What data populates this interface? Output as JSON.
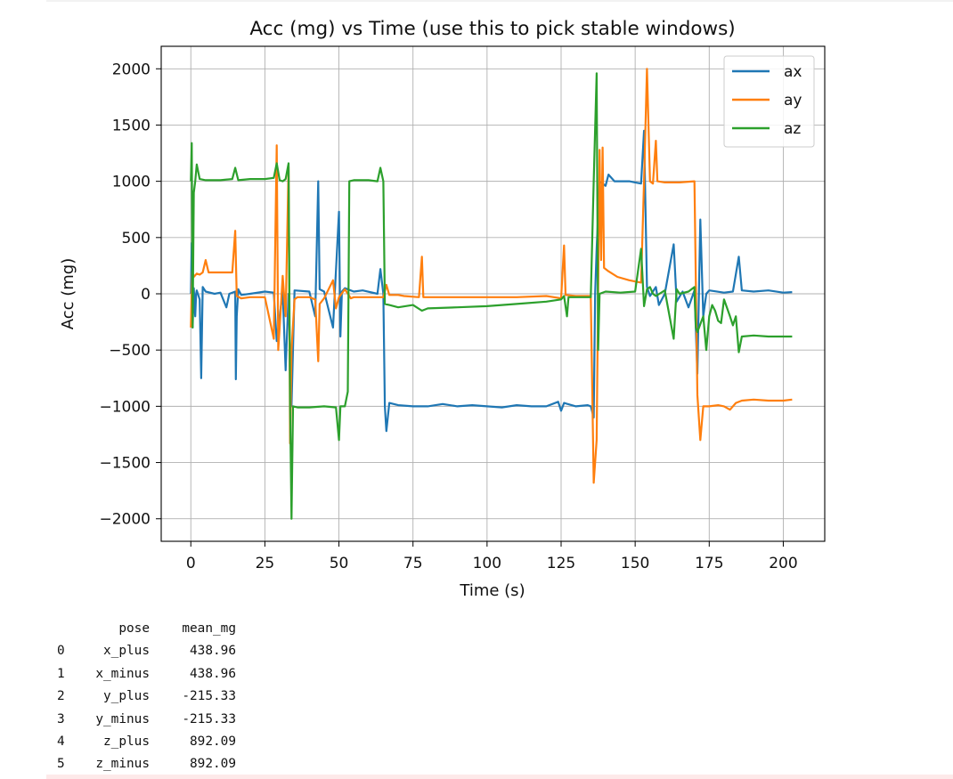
{
  "chart_data": {
    "type": "line",
    "title": "Acc (mg) vs Time (use this to pick stable windows)",
    "xlabel": "Time (s)",
    "ylabel": "Acc (mg)",
    "xlim": [
      -10,
      214
    ],
    "ylim": [
      -2200,
      2200
    ],
    "xticks": [
      0,
      25,
      50,
      75,
      100,
      125,
      150,
      175,
      200
    ],
    "yticks": [
      2000,
      1500,
      1000,
      500,
      0,
      -500,
      -1000,
      -1500,
      -2000
    ],
    "xtick_labels": [
      "0",
      "25",
      "50",
      "75",
      "100",
      "125",
      "150",
      "175",
      "200"
    ],
    "ytick_labels": [
      "2000",
      "1500",
      "1000",
      "500",
      "0",
      "−500",
      "−1000",
      "−1500",
      "−2000"
    ],
    "grid": true,
    "legend_position": "upper right",
    "series": [
      {
        "name": "ax",
        "color": "#1f77b4",
        "points": [
          [
            0,
            0
          ],
          [
            0.3,
            450
          ],
          [
            0.6,
            -300
          ],
          [
            1,
            50
          ],
          [
            1.5,
            -200
          ],
          [
            1.8,
            0
          ],
          [
            2,
            30
          ],
          [
            3,
            -50
          ],
          [
            3.5,
            -750
          ],
          [
            4,
            60
          ],
          [
            5,
            20
          ],
          [
            8,
            0
          ],
          [
            10,
            10
          ],
          [
            12,
            -120
          ],
          [
            13,
            0
          ],
          [
            15,
            20
          ],
          [
            15.2,
            -760
          ],
          [
            15.5,
            -200
          ],
          [
            16,
            40
          ],
          [
            17,
            -10
          ],
          [
            20,
            0
          ],
          [
            25,
            20
          ],
          [
            28,
            10
          ],
          [
            29,
            -420
          ],
          [
            30,
            -200
          ],
          [
            31,
            20
          ],
          [
            32,
            -680
          ],
          [
            33,
            0
          ],
          [
            34,
            -1000
          ],
          [
            35,
            30
          ],
          [
            40,
            20
          ],
          [
            42,
            -200
          ],
          [
            43,
            1000
          ],
          [
            43.5,
            40
          ],
          [
            45,
            20
          ],
          [
            48,
            -300
          ],
          [
            50,
            730
          ],
          [
            50.5,
            -380
          ],
          [
            51,
            20
          ],
          [
            52,
            50
          ],
          [
            55,
            20
          ],
          [
            58,
            30
          ],
          [
            63,
            0
          ],
          [
            64,
            220
          ],
          [
            65,
            0
          ],
          [
            65.5,
            -1000
          ],
          [
            66,
            -1220
          ],
          [
            67,
            -970
          ],
          [
            70,
            -990
          ],
          [
            75,
            -1000
          ],
          [
            80,
            -1000
          ],
          [
            85,
            -980
          ],
          [
            90,
            -1000
          ],
          [
            95,
            -990
          ],
          [
            100,
            -1000
          ],
          [
            105,
            -1010
          ],
          [
            110,
            -990
          ],
          [
            115,
            -1000
          ],
          [
            120,
            -1000
          ],
          [
            124,
            -960
          ],
          [
            125,
            -1040
          ],
          [
            126,
            -970
          ],
          [
            130,
            -1000
          ],
          [
            134,
            -990
          ],
          [
            135,
            -1000
          ],
          [
            136,
            -1100
          ],
          [
            136.5,
            0
          ],
          [
            137,
            400
          ],
          [
            138,
            1000
          ],
          [
            140,
            960
          ],
          [
            141,
            1060
          ],
          [
            143,
            1000
          ],
          [
            148,
            1000
          ],
          [
            150,
            990
          ],
          [
            152,
            980
          ],
          [
            153,
            1450
          ],
          [
            154,
            60
          ],
          [
            155,
            -20
          ],
          [
            157,
            60
          ],
          [
            158,
            -100
          ],
          [
            160,
            0
          ],
          [
            163,
            440
          ],
          [
            164,
            -70
          ],
          [
            166,
            20
          ],
          [
            168,
            -120
          ],
          [
            170,
            30
          ],
          [
            171,
            -710
          ],
          [
            172,
            660
          ],
          [
            173,
            -200
          ],
          [
            174,
            0
          ],
          [
            175,
            30
          ],
          [
            180,
            10
          ],
          [
            183,
            20
          ],
          [
            185,
            330
          ],
          [
            186,
            30
          ],
          [
            190,
            20
          ],
          [
            195,
            30
          ],
          [
            200,
            10
          ],
          [
            203,
            15
          ]
        ]
      },
      {
        "name": "ay",
        "color": "#ff7f0e",
        "points": [
          [
            0,
            -300
          ],
          [
            0.5,
            200
          ],
          [
            1,
            150
          ],
          [
            2,
            180
          ],
          [
            3,
            170
          ],
          [
            4,
            190
          ],
          [
            5,
            300
          ],
          [
            6,
            190
          ],
          [
            10,
            190
          ],
          [
            14,
            190
          ],
          [
            15,
            560
          ],
          [
            15.5,
            -20
          ],
          [
            17,
            -40
          ],
          [
            20,
            -30
          ],
          [
            25,
            -30
          ],
          [
            28,
            -400
          ],
          [
            29,
            1320
          ],
          [
            29.5,
            -500
          ],
          [
            30,
            -300
          ],
          [
            31,
            160
          ],
          [
            32,
            -200
          ],
          [
            33,
            1130
          ],
          [
            33.5,
            -1330
          ],
          [
            34,
            -500
          ],
          [
            35,
            -50
          ],
          [
            36,
            -30
          ],
          [
            40,
            -30
          ],
          [
            42,
            -50
          ],
          [
            43,
            -600
          ],
          [
            43.5,
            -90
          ],
          [
            45,
            -40
          ],
          [
            48,
            120
          ],
          [
            49,
            -130
          ],
          [
            50,
            -30
          ],
          [
            52,
            40
          ],
          [
            54,
            -40
          ],
          [
            55,
            -30
          ],
          [
            58,
            -30
          ],
          [
            62,
            -30
          ],
          [
            65,
            -30
          ],
          [
            66,
            80
          ],
          [
            67,
            -10
          ],
          [
            70,
            -10
          ],
          [
            72,
            -20
          ],
          [
            77,
            -30
          ],
          [
            78,
            330
          ],
          [
            78.5,
            -30
          ],
          [
            85,
            -30
          ],
          [
            90,
            -30
          ],
          [
            100,
            -30
          ],
          [
            110,
            -30
          ],
          [
            120,
            -20
          ],
          [
            125,
            -40
          ],
          [
            126,
            430
          ],
          [
            126.5,
            -10
          ],
          [
            130,
            -20
          ],
          [
            135,
            -20
          ],
          [
            136,
            -1680
          ],
          [
            137,
            -1300
          ],
          [
            138,
            1280
          ],
          [
            138.5,
            300
          ],
          [
            139,
            1300
          ],
          [
            139.5,
            230
          ],
          [
            141,
            200
          ],
          [
            144,
            150
          ],
          [
            148,
            120
          ],
          [
            152,
            100
          ],
          [
            153,
            1000
          ],
          [
            154,
            2000
          ],
          [
            155,
            1000
          ],
          [
            156,
            980
          ],
          [
            157,
            1360
          ],
          [
            157.5,
            1000
          ],
          [
            160,
            990
          ],
          [
            165,
            990
          ],
          [
            170,
            1000
          ],
          [
            171,
            -900
          ],
          [
            172,
            -1300
          ],
          [
            173,
            -1000
          ],
          [
            175,
            -1000
          ],
          [
            178,
            -990
          ],
          [
            180,
            -1000
          ],
          [
            182,
            -1030
          ],
          [
            184,
            -970
          ],
          [
            186,
            -950
          ],
          [
            190,
            -940
          ],
          [
            195,
            -950
          ],
          [
            200,
            -950
          ],
          [
            203,
            -940
          ]
        ]
      },
      {
        "name": "az",
        "color": "#2ca02c",
        "points": [
          [
            0,
            1000
          ],
          [
            0.3,
            1340
          ],
          [
            0.6,
            -300
          ],
          [
            1,
            900
          ],
          [
            1.5,
            1000
          ],
          [
            2,
            1150
          ],
          [
            3,
            1020
          ],
          [
            5,
            1010
          ],
          [
            10,
            1010
          ],
          [
            14,
            1020
          ],
          [
            15,
            1120
          ],
          [
            16,
            1010
          ],
          [
            20,
            1020
          ],
          [
            25,
            1020
          ],
          [
            28,
            1030
          ],
          [
            29,
            1160
          ],
          [
            30,
            1010
          ],
          [
            31,
            1000
          ],
          [
            32,
            1020
          ],
          [
            33,
            1160
          ],
          [
            33.5,
            -1000
          ],
          [
            34,
            -2000
          ],
          [
            34.5,
            -1000
          ],
          [
            36,
            -1010
          ],
          [
            40,
            -1010
          ],
          [
            45,
            -1000
          ],
          [
            49,
            -1010
          ],
          [
            50,
            -1300
          ],
          [
            50.5,
            -1000
          ],
          [
            52,
            -1000
          ],
          [
            53,
            -870
          ],
          [
            53.5,
            1000
          ],
          [
            55,
            1010
          ],
          [
            60,
            1010
          ],
          [
            63,
            1000
          ],
          [
            64,
            1120
          ],
          [
            65,
            1000
          ],
          [
            65.5,
            -90
          ],
          [
            67,
            -100
          ],
          [
            70,
            -120
          ],
          [
            75,
            -100
          ],
          [
            78,
            -150
          ],
          [
            80,
            -130
          ],
          [
            90,
            -120
          ],
          [
            100,
            -110
          ],
          [
            110,
            -90
          ],
          [
            120,
            -70
          ],
          [
            125,
            -50
          ],
          [
            126,
            -20
          ],
          [
            127,
            -200
          ],
          [
            127.5,
            -30
          ],
          [
            130,
            -30
          ],
          [
            135,
            -30
          ],
          [
            136,
            1000
          ],
          [
            137,
            1960
          ],
          [
            137.5,
            -500
          ],
          [
            138,
            0
          ],
          [
            140,
            20
          ],
          [
            145,
            10
          ],
          [
            150,
            20
          ],
          [
            152,
            400
          ],
          [
            153,
            -110
          ],
          [
            154,
            40
          ],
          [
            155,
            60
          ],
          [
            156,
            0
          ],
          [
            157,
            -20
          ],
          [
            160,
            30
          ],
          [
            163,
            -400
          ],
          [
            164,
            40
          ],
          [
            165,
            0
          ],
          [
            168,
            20
          ],
          [
            170,
            60
          ],
          [
            170.5,
            -300
          ],
          [
            171,
            -340
          ],
          [
            173,
            -200
          ],
          [
            174,
            -500
          ],
          [
            175,
            -200
          ],
          [
            176,
            -100
          ],
          [
            177,
            -150
          ],
          [
            178,
            -240
          ],
          [
            179,
            -260
          ],
          [
            180,
            -50
          ],
          [
            182,
            -200
          ],
          [
            183,
            -280
          ],
          [
            184,
            -200
          ],
          [
            185,
            -520
          ],
          [
            186,
            -380
          ],
          [
            190,
            -370
          ],
          [
            195,
            -380
          ],
          [
            200,
            -380
          ],
          [
            203,
            -380
          ]
        ]
      }
    ]
  },
  "table": {
    "headers": [
      "",
      "pose",
      "mean_mg"
    ],
    "rows": [
      [
        "0",
        "x_plus",
        "438.96"
      ],
      [
        "1",
        "x_minus",
        "438.96"
      ],
      [
        "2",
        "y_plus",
        "-215.33"
      ],
      [
        "3",
        "y_minus",
        "-215.33"
      ],
      [
        "4",
        "z_plus",
        "892.09"
      ],
      [
        "5",
        "z_minus",
        "892.09"
      ]
    ]
  }
}
